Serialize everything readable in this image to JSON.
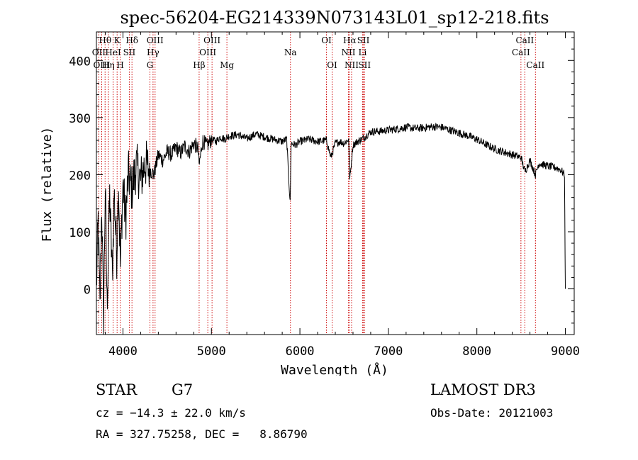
{
  "chart_data": {
    "type": "line",
    "title": "spec-56204-EG214339N073143L01_sp12-218.fits",
    "xlabel": "Wavelength (Å)",
    "ylabel": "Flux (relative)",
    "xlim": [
      3700,
      9100
    ],
    "ylim": [
      -80,
      450
    ],
    "x_ticks": [
      4000,
      5000,
      6000,
      7000,
      8000,
      9000
    ],
    "y_ticks": [
      0,
      100,
      200,
      300,
      400
    ],
    "grid": false,
    "series": [
      {
        "name": "flux",
        "x": [
          3700,
          3720,
          3740,
          3760,
          3780,
          3800,
          3820,
          3850,
          3880,
          3900,
          3930,
          3950,
          3970,
          4000,
          4030,
          4060,
          4100,
          4150,
          4200,
          4250,
          4300,
          4350,
          4400,
          4450,
          4500,
          4550,
          4600,
          4650,
          4700,
          4750,
          4800,
          4850,
          4860,
          4900,
          4950,
          5000,
          5050,
          5100,
          5150,
          5200,
          5300,
          5400,
          5500,
          5600,
          5700,
          5800,
          5850,
          5890,
          5900,
          5950,
          6000,
          6100,
          6200,
          6300,
          6350,
          6400,
          6450,
          6500,
          6550,
          6563,
          6600,
          6650,
          6700,
          6800,
          6900,
          7000,
          7100,
          7200,
          7300,
          7400,
          7500,
          7600,
          7700,
          7800,
          7900,
          8000,
          8100,
          8200,
          8300,
          8400,
          8500,
          8542,
          8600,
          8662,
          8700,
          8800,
          8900,
          8950,
          8990,
          9000
        ],
        "y": [
          0,
          120,
          -40,
          150,
          -60,
          180,
          -30,
          160,
          20,
          170,
          60,
          190,
          40,
          185,
          120,
          200,
          175,
          215,
          190,
          220,
          210,
          200,
          235,
          225,
          240,
          235,
          248,
          238,
          250,
          240,
          255,
          245,
          215,
          260,
          250,
          262,
          258,
          266,
          262,
          268,
          270,
          263,
          271,
          266,
          262,
          258,
          262,
          150,
          255,
          252,
          258,
          262,
          258,
          260,
          230,
          255,
          258,
          255,
          262,
          190,
          252,
          258,
          262,
          275,
          276,
          278,
          280,
          283,
          281,
          282,
          284,
          283,
          278,
          273,
          268,
          262,
          253,
          245,
          240,
          235,
          230,
          205,
          225,
          200,
          220,
          215,
          212,
          208,
          200,
          0
        ]
      }
    ],
    "line_labels": [
      {
        "label": "Hθ",
        "wavelength": 3798,
        "row": 1
      },
      {
        "label": "OII",
        "wavelength": 3727,
        "row": 2
      },
      {
        "label": "OIII",
        "wavelength": 3760,
        "row": 3
      },
      {
        "label": "K",
        "wavelength": 3934,
        "row": 1
      },
      {
        "label": "HeI",
        "wavelength": 3889,
        "row": 2
      },
      {
        "label": "Hη",
        "wavelength": 3835,
        "row": 3
      },
      {
        "label": "SII",
        "wavelength": 4072,
        "row": 2
      },
      {
        "label": "H",
        "wavelength": 3969,
        "row": 3
      },
      {
        "label": "Hδ",
        "wavelength": 4102,
        "row": 1
      },
      {
        "label": "OIII",
        "wavelength": 4363,
        "row": 1
      },
      {
        "label": "Hγ",
        "wavelength": 4340,
        "row": 2
      },
      {
        "label": "G",
        "wavelength": 4305,
        "row": 3
      },
      {
        "label": "OIII",
        "wavelength": 5007,
        "row": 1
      },
      {
        "label": "OIII",
        "wavelength": 4959,
        "row": 2
      },
      {
        "label": "Hβ",
        "wavelength": 4861,
        "row": 3
      },
      {
        "label": "Mg",
        "wavelength": 5175,
        "row": 3
      },
      {
        "label": "Na",
        "wavelength": 5893,
        "row": 2
      },
      {
        "label": "OI",
        "wavelength": 6300,
        "row": 1
      },
      {
        "label": "OI",
        "wavelength": 6364,
        "row": 3
      },
      {
        "label": "Hα",
        "wavelength": 6563,
        "row": 1
      },
      {
        "label": "NII",
        "wavelength": 6548,
        "row": 2
      },
      {
        "label": "NII",
        "wavelength": 6584,
        "row": 3
      },
      {
        "label": "SII",
        "wavelength": 6717,
        "row": 1
      },
      {
        "label": "Li",
        "wavelength": 6708,
        "row": 2
      },
      {
        "label": "SII",
        "wavelength": 6731,
        "row": 3
      },
      {
        "label": "CaII",
        "wavelength": 8542,
        "row": 1
      },
      {
        "label": "CaII",
        "wavelength": 8498,
        "row": 2
      },
      {
        "label": "CaII",
        "wavelength": 8662,
        "row": 3
      }
    ]
  },
  "footer": {
    "object_class": "STAR",
    "subclass": "G7",
    "survey": "LAMOST DR3",
    "cz": "cz = −14.3 ± 22.0 km/s",
    "obs_date": "Obs-Date: 20121003",
    "radec": "RA = 327.75258, DEC =   8.86790"
  },
  "colors": {
    "spectrum": "#000000",
    "line_markers": "#cc0000",
    "axes": "#000000",
    "background": "#ffffff"
  }
}
